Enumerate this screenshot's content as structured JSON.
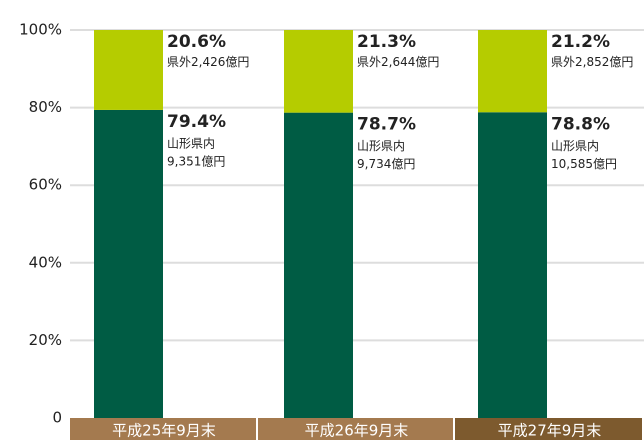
{
  "chart_data": {
    "type": "stacked_bar",
    "categories": [
      "平成25年9月末",
      "平成26年9月末",
      "平成27年9月末"
    ],
    "series": [
      {
        "name": "山形県内",
        "color": "#005c44",
        "values": [
          79.4,
          78.7,
          78.8
        ],
        "value_labels": [
          "79.4%",
          "78.7%",
          "78.8%"
        ],
        "amount_labels": [
          "9,351億円",
          "9,734億円",
          "10,585億円"
        ]
      },
      {
        "name": "県外",
        "color": "#b5cc00",
        "values": [
          20.6,
          21.3,
          21.2
        ],
        "value_labels": [
          "20.6%",
          "21.3%",
          "21.2%"
        ],
        "amount_labels": [
          "2,426億円",
          "2,644億円",
          "2,852億円"
        ]
      }
    ],
    "ylim": [
      0,
      100
    ],
    "yticks": [
      0,
      {
        "value": 20,
        "label": "20%"
      },
      {
        "value": 40,
        "label": "40%"
      },
      {
        "value": 60,
        "label": "60%"
      },
      {
        "value": 80,
        "label": "80%"
      },
      {
        "value": 100,
        "label": "100%"
      }
    ],
    "grid": true
  }
}
